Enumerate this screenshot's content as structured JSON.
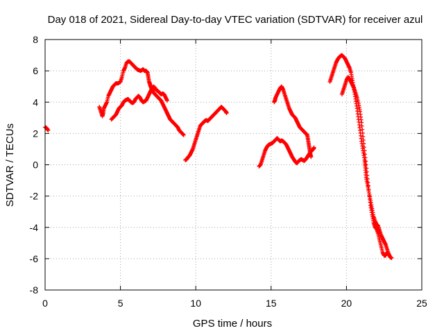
{
  "chart_data": {
    "type": "scatter",
    "title": "Day 018 of 2021, Sidereal Day-to-day VTEC variation (SDTVAR) for receiver azul",
    "xlabel": "GPS time / hours",
    "ylabel": "SDTVAR / TECUs",
    "xlim": [
      0,
      25
    ],
    "ylim": [
      -8,
      8
    ],
    "xticks": [
      0,
      5,
      10,
      15,
      20,
      25
    ],
    "yticks": [
      -8,
      -6,
      -4,
      -2,
      0,
      2,
      4,
      6,
      8
    ],
    "grid": true,
    "marker": "plus",
    "color": "#ff0000",
    "series": [
      {
        "points": [
          [
            0.0,
            2.4
          ],
          [
            0.1,
            2.35
          ],
          [
            0.2,
            2.2
          ]
        ]
      },
      {
        "points": [
          [
            3.6,
            3.7
          ],
          [
            3.7,
            3.4
          ],
          [
            3.8,
            3.1
          ],
          [
            3.85,
            3.3
          ],
          [
            3.9,
            3.6
          ],
          [
            4.0,
            3.8
          ],
          [
            4.1,
            4.0
          ],
          [
            4.2,
            4.4
          ],
          [
            4.3,
            4.6
          ],
          [
            4.4,
            4.8
          ],
          [
            4.5,
            5.0
          ],
          [
            4.6,
            5.1
          ],
          [
            4.7,
            5.2
          ],
          [
            4.85,
            5.2
          ],
          [
            5.0,
            5.3
          ],
          [
            5.1,
            5.6
          ],
          [
            5.2,
            6.0
          ],
          [
            5.3,
            6.2
          ],
          [
            5.4,
            6.5
          ],
          [
            5.5,
            6.6
          ],
          [
            5.6,
            6.6
          ],
          [
            5.7,
            6.5
          ],
          [
            5.8,
            6.4
          ],
          [
            5.9,
            6.3
          ],
          [
            6.0,
            6.2
          ],
          [
            6.1,
            6.1
          ],
          [
            6.2,
            6.05
          ],
          [
            6.35,
            6.0
          ],
          [
            6.5,
            6.1
          ],
          [
            6.6,
            6.0
          ],
          [
            6.7,
            6.0
          ],
          [
            6.8,
            5.9
          ],
          [
            6.85,
            5.6
          ],
          [
            6.9,
            5.3
          ],
          [
            6.95,
            5.2
          ],
          [
            7.0,
            5.0
          ],
          [
            7.1,
            4.8
          ],
          [
            7.2,
            4.6
          ],
          [
            7.3,
            4.5
          ],
          [
            7.4,
            4.4
          ],
          [
            7.5,
            4.3
          ],
          [
            7.6,
            4.2
          ],
          [
            7.7,
            4.1
          ],
          [
            7.8,
            3.9
          ],
          [
            7.9,
            3.7
          ],
          [
            8.0,
            3.5
          ],
          [
            8.1,
            3.3
          ],
          [
            8.2,
            3.1
          ],
          [
            8.3,
            2.9
          ],
          [
            8.4,
            2.8
          ],
          [
            8.5,
            2.7
          ],
          [
            8.6,
            2.6
          ],
          [
            8.7,
            2.5
          ],
          [
            8.8,
            2.4
          ],
          [
            8.9,
            2.2
          ],
          [
            9.0,
            2.1
          ],
          [
            9.1,
            2.0
          ],
          [
            9.2,
            1.9
          ]
        ]
      },
      {
        "points": [
          [
            4.4,
            2.9
          ],
          [
            4.5,
            3.0
          ],
          [
            4.6,
            3.1
          ],
          [
            4.7,
            3.2
          ],
          [
            4.8,
            3.4
          ],
          [
            4.9,
            3.6
          ],
          [
            5.0,
            3.7
          ],
          [
            5.1,
            3.8
          ],
          [
            5.2,
            4.0
          ],
          [
            5.3,
            4.1
          ],
          [
            5.4,
            4.15
          ],
          [
            5.5,
            4.2
          ],
          [
            5.6,
            4.1
          ],
          [
            5.7,
            4.0
          ],
          [
            5.8,
            3.95
          ],
          [
            5.9,
            4.0
          ],
          [
            6.0,
            4.2
          ],
          [
            6.1,
            4.3
          ],
          [
            6.2,
            4.4
          ],
          [
            6.3,
            4.3
          ],
          [
            6.4,
            4.1
          ],
          [
            6.5,
            4.0
          ],
          [
            6.6,
            4.05
          ],
          [
            6.7,
            4.1
          ],
          [
            6.8,
            4.3
          ],
          [
            6.9,
            4.5
          ],
          [
            7.0,
            4.7
          ],
          [
            7.1,
            4.9
          ],
          [
            7.2,
            5.0
          ],
          [
            7.3,
            4.9
          ],
          [
            7.4,
            4.75
          ],
          [
            7.5,
            4.7
          ],
          [
            7.6,
            4.6
          ],
          [
            7.7,
            4.5
          ],
          [
            7.8,
            4.55
          ],
          [
            7.9,
            4.5
          ],
          [
            8.0,
            4.3
          ],
          [
            8.1,
            4.1
          ]
        ]
      },
      {
        "points": [
          [
            9.3,
            0.3
          ],
          [
            9.4,
            0.35
          ],
          [
            9.5,
            0.5
          ],
          [
            9.6,
            0.6
          ],
          [
            9.7,
            0.8
          ],
          [
            9.8,
            1.0
          ],
          [
            9.9,
            1.3
          ],
          [
            10.0,
            1.6
          ],
          [
            10.1,
            1.9
          ],
          [
            10.2,
            2.2
          ],
          [
            10.3,
            2.5
          ],
          [
            10.4,
            2.6
          ],
          [
            10.5,
            2.7
          ],
          [
            10.6,
            2.8
          ],
          [
            10.7,
            2.85
          ],
          [
            10.8,
            2.8
          ],
          [
            10.9,
            2.9
          ],
          [
            11.0,
            3.0
          ],
          [
            11.1,
            3.1
          ],
          [
            11.2,
            3.2
          ],
          [
            11.3,
            3.3
          ],
          [
            11.4,
            3.4
          ],
          [
            11.5,
            3.5
          ],
          [
            11.6,
            3.6
          ],
          [
            11.7,
            3.7
          ],
          [
            11.8,
            3.6
          ],
          [
            11.9,
            3.5
          ],
          [
            12.0,
            3.4
          ],
          [
            12.05,
            3.3
          ]
        ]
      },
      {
        "points": [
          [
            14.2,
            -0.1
          ],
          [
            14.3,
            0.0
          ],
          [
            14.4,
            0.3
          ],
          [
            14.5,
            0.6
          ],
          [
            14.6,
            0.9
          ],
          [
            14.7,
            1.1
          ],
          [
            14.8,
            1.25
          ],
          [
            14.9,
            1.3
          ],
          [
            15.0,
            1.35
          ],
          [
            15.1,
            1.4
          ],
          [
            15.2,
            1.5
          ],
          [
            15.3,
            1.6
          ],
          [
            15.4,
            1.7
          ],
          [
            15.5,
            1.6
          ],
          [
            15.6,
            1.5
          ],
          [
            15.7,
            1.55
          ],
          [
            15.8,
            1.5
          ],
          [
            15.9,
            1.4
          ],
          [
            16.0,
            1.3
          ],
          [
            16.1,
            1.1
          ],
          [
            16.2,
            0.9
          ],
          [
            16.3,
            0.7
          ],
          [
            16.4,
            0.5
          ],
          [
            16.5,
            0.35
          ],
          [
            16.6,
            0.2
          ],
          [
            16.7,
            0.1
          ],
          [
            16.8,
            0.2
          ],
          [
            16.9,
            0.3
          ],
          [
            17.0,
            0.35
          ],
          [
            17.1,
            0.3
          ],
          [
            17.2,
            0.25
          ],
          [
            17.3,
            0.35
          ],
          [
            17.4,
            0.5
          ],
          [
            17.5,
            0.65
          ],
          [
            17.6,
            0.8
          ],
          [
            17.7,
            0.9
          ],
          [
            17.8,
            1.0
          ],
          [
            17.85,
            1.1
          ]
        ]
      },
      {
        "points": [
          [
            15.2,
            4.0
          ],
          [
            15.25,
            4.1
          ],
          [
            15.3,
            4.3
          ],
          [
            15.4,
            4.5
          ],
          [
            15.5,
            4.7
          ],
          [
            15.6,
            4.9
          ],
          [
            15.7,
            5.0
          ],
          [
            15.8,
            4.8
          ],
          [
            15.9,
            4.5
          ],
          [
            16.0,
            4.2
          ],
          [
            16.1,
            3.9
          ],
          [
            16.2,
            3.6
          ],
          [
            16.3,
            3.4
          ],
          [
            16.4,
            3.2
          ],
          [
            16.5,
            3.1
          ],
          [
            16.6,
            3.0
          ],
          [
            16.7,
            2.8
          ],
          [
            16.8,
            2.6
          ],
          [
            16.9,
            2.4
          ],
          [
            17.0,
            2.3
          ],
          [
            17.1,
            2.2
          ],
          [
            17.2,
            2.1
          ],
          [
            17.3,
            2.0
          ],
          [
            17.4,
            1.9
          ],
          [
            17.45,
            1.6
          ],
          [
            17.5,
            1.3
          ],
          [
            17.55,
            1.0
          ],
          [
            17.6,
            0.7
          ],
          [
            17.65,
            0.5
          ]
        ]
      },
      {
        "points": [
          [
            18.9,
            5.3
          ],
          [
            19.0,
            5.6
          ],
          [
            19.1,
            5.9
          ],
          [
            19.2,
            6.2
          ],
          [
            19.3,
            6.5
          ],
          [
            19.4,
            6.7
          ],
          [
            19.5,
            6.85
          ],
          [
            19.6,
            6.95
          ],
          [
            19.7,
            7.0
          ],
          [
            19.8,
            6.9
          ],
          [
            19.9,
            6.8
          ],
          [
            20.0,
            6.6
          ],
          [
            20.1,
            6.4
          ],
          [
            20.2,
            6.2
          ],
          [
            20.3,
            5.9
          ],
          [
            20.4,
            5.4
          ],
          [
            20.5,
            4.8
          ],
          [
            20.6,
            4.2
          ],
          [
            20.7,
            3.6
          ],
          [
            20.8,
            2.9
          ],
          [
            20.9,
            2.2
          ],
          [
            21.0,
            1.5
          ],
          [
            21.1,
            0.9
          ],
          [
            21.2,
            0.3
          ],
          [
            21.25,
            -0.2
          ],
          [
            21.3,
            -0.8
          ],
          [
            21.4,
            -1.3
          ],
          [
            21.5,
            -1.8
          ],
          [
            21.6,
            -2.3
          ],
          [
            21.7,
            -2.8
          ],
          [
            21.8,
            -3.3
          ],
          [
            21.9,
            -3.6
          ],
          [
            22.0,
            -3.8
          ],
          [
            22.1,
            -3.9
          ],
          [
            22.2,
            -4.2
          ],
          [
            22.3,
            -4.5
          ],
          [
            22.4,
            -4.7
          ],
          [
            22.5,
            -4.9
          ],
          [
            22.6,
            -5.1
          ],
          [
            22.7,
            -5.4
          ],
          [
            22.8,
            -5.7
          ],
          [
            22.9,
            -5.9
          ]
        ]
      },
      {
        "points": [
          [
            19.7,
            4.5
          ],
          [
            19.8,
            4.8
          ],
          [
            19.9,
            5.1
          ],
          [
            20.0,
            5.4
          ],
          [
            20.1,
            5.6
          ],
          [
            20.2,
            5.5
          ],
          [
            20.3,
            5.3
          ],
          [
            20.4,
            5.1
          ],
          [
            20.5,
            4.9
          ],
          [
            20.6,
            4.6
          ],
          [
            20.7,
            4.3
          ],
          [
            20.8,
            3.9
          ],
          [
            20.9,
            3.4
          ],
          [
            21.0,
            2.7
          ],
          [
            21.1,
            1.8
          ],
          [
            21.2,
            0.9
          ],
          [
            21.3,
            0.0
          ],
          [
            21.4,
            -0.9
          ],
          [
            21.5,
            -1.8
          ],
          [
            21.6,
            -2.6
          ],
          [
            21.7,
            -3.2
          ],
          [
            21.8,
            -3.7
          ],
          [
            21.9,
            -4.0
          ],
          [
            22.0,
            -4.1
          ],
          [
            22.1,
            -4.4
          ],
          [
            22.2,
            -4.8
          ],
          [
            22.3,
            -5.2
          ],
          [
            22.4,
            -5.6
          ],
          [
            22.5,
            -5.8
          ],
          [
            22.6,
            -5.8
          ],
          [
            22.7,
            -5.6
          ],
          [
            22.8,
            -5.7
          ],
          [
            22.9,
            -5.9
          ],
          [
            23.0,
            -5.95
          ]
        ]
      }
    ]
  }
}
